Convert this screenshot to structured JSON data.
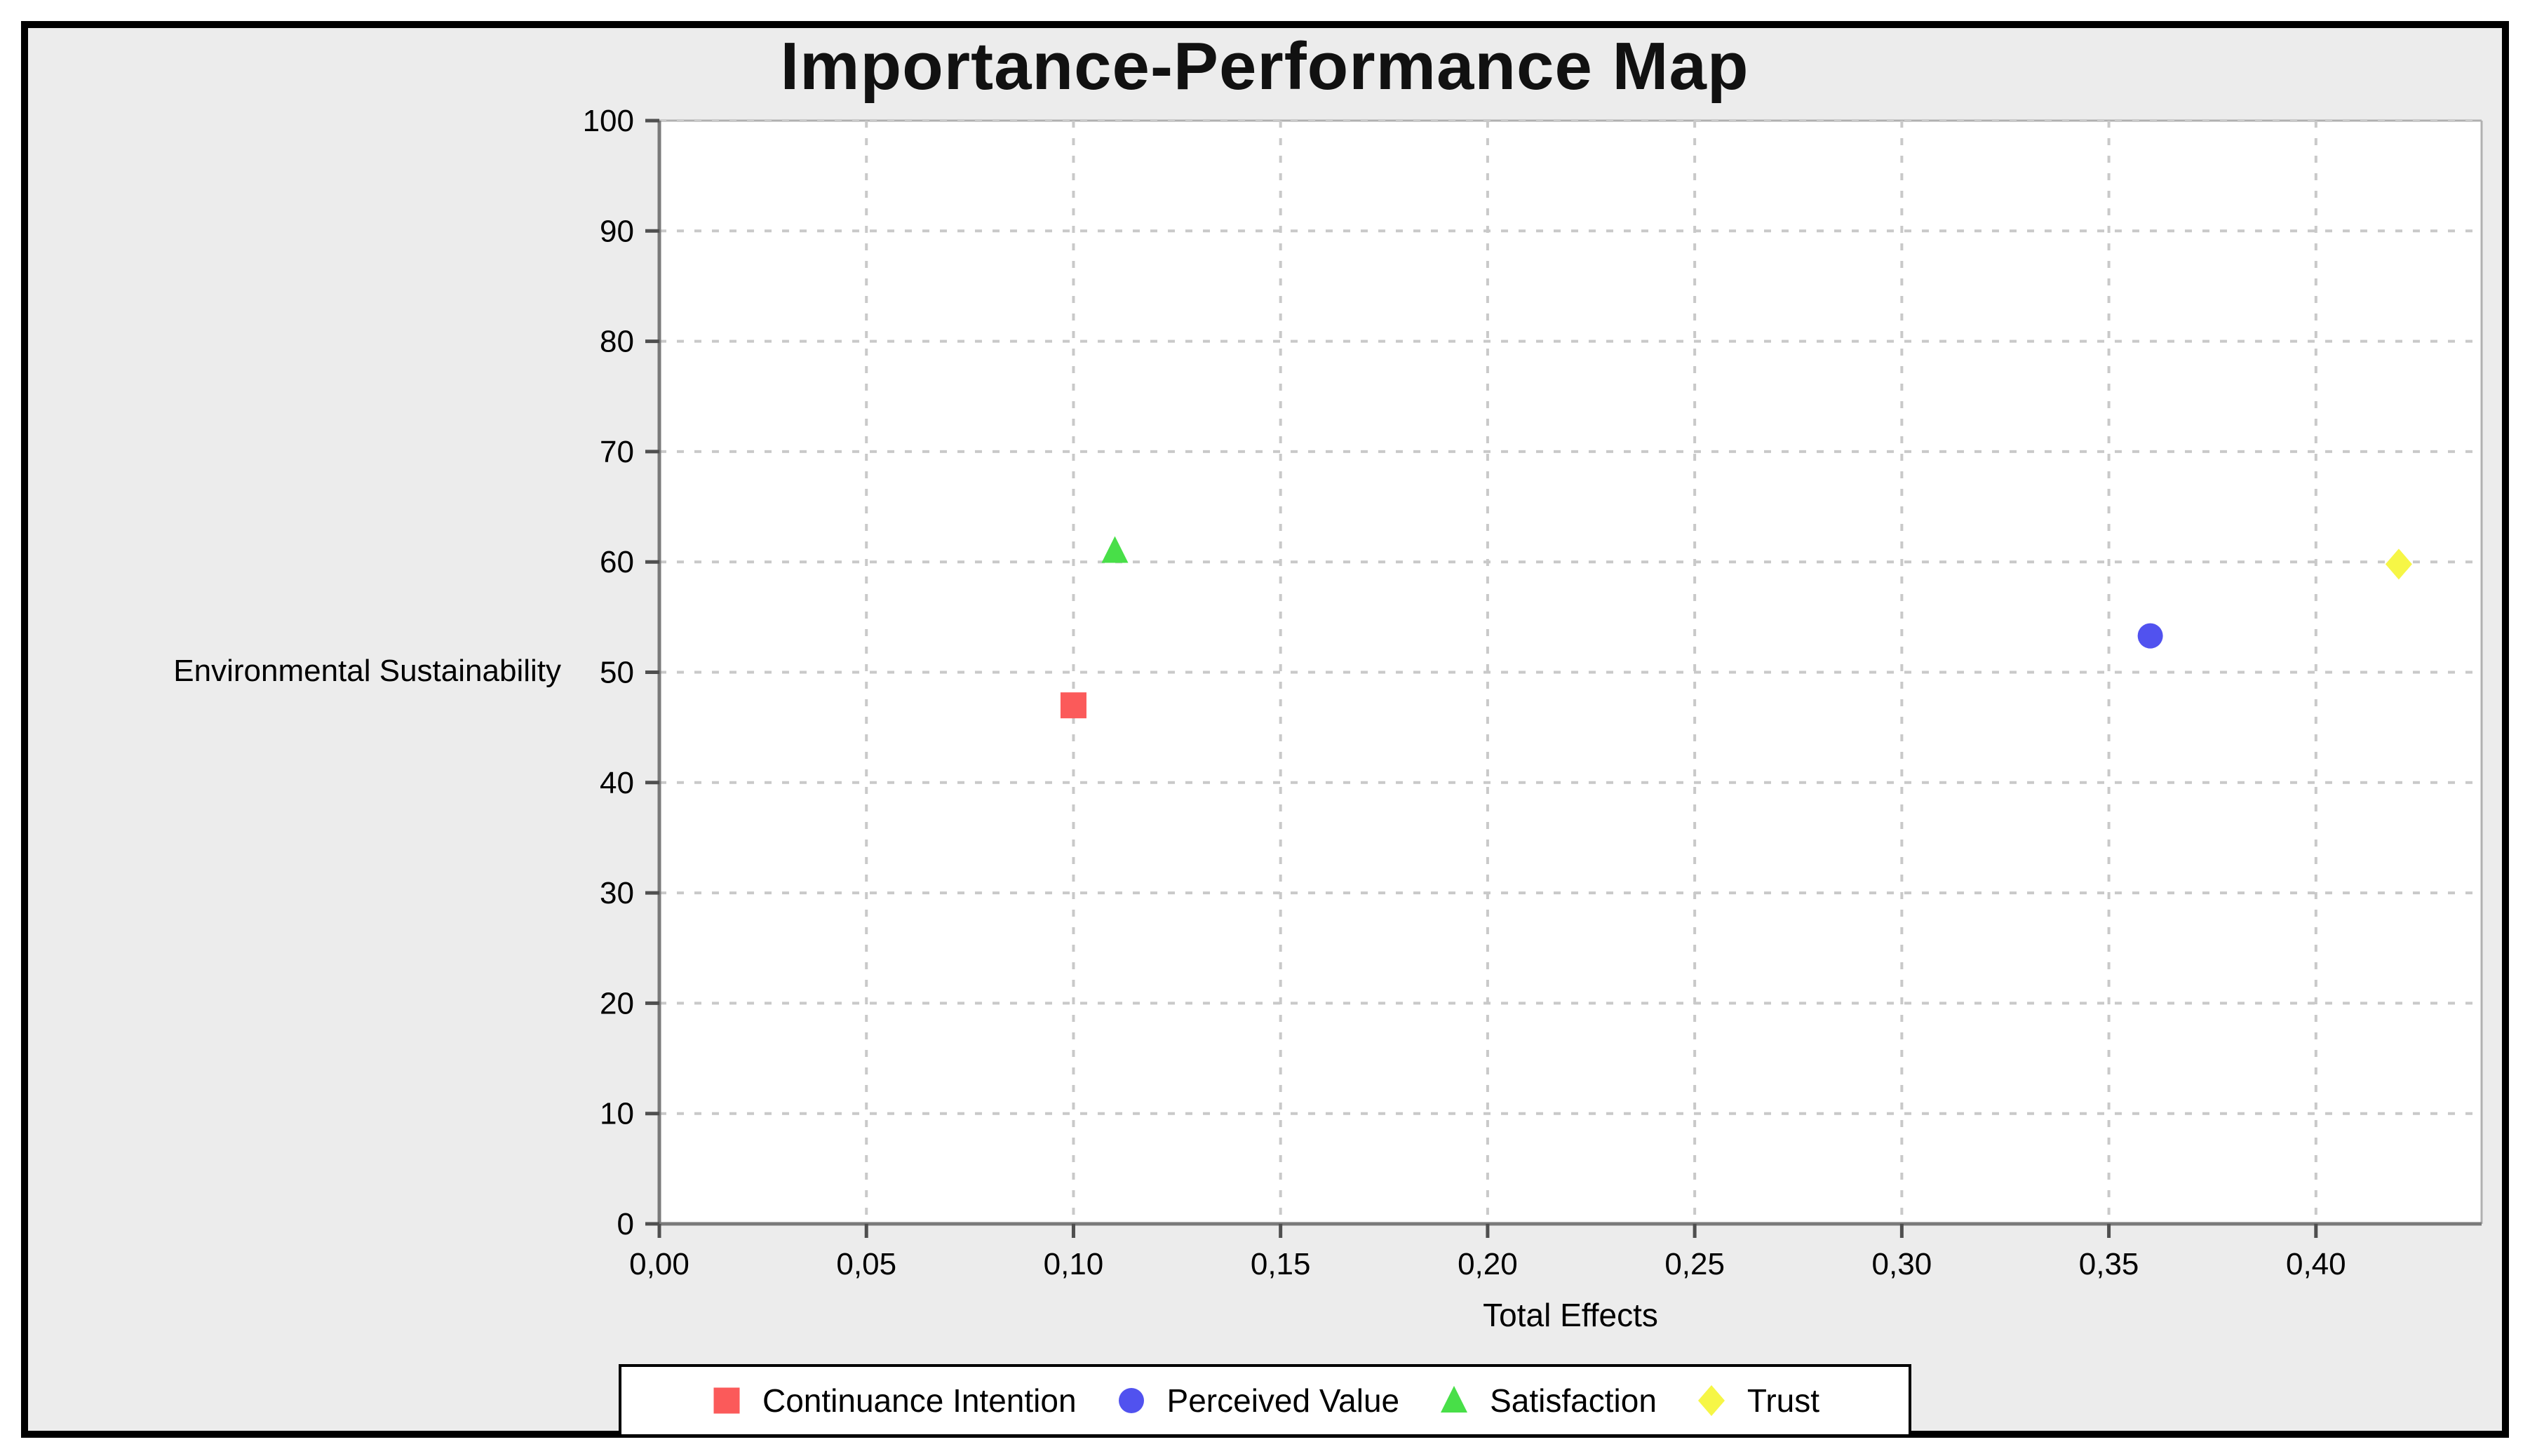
{
  "window": {
    "background": "#ffffff",
    "panel_background": "#ececec",
    "frame_border_color": "#000000"
  },
  "chart_data": {
    "type": "scatter",
    "title": "Importance-Performance Map",
    "xlabel": "Total Effects",
    "ylabel": "Environmental Sustainability",
    "xlim": [
      0,
      0.44
    ],
    "ylim": [
      0,
      100
    ],
    "x_ticks": [
      0.0,
      0.05,
      0.1,
      0.15,
      0.2,
      0.25,
      0.3,
      0.35,
      0.4
    ],
    "x_tick_labels": [
      "0,00",
      "0,05",
      "0,10",
      "0,15",
      "0,20",
      "0,25",
      "0,30",
      "0,35",
      "0,40"
    ],
    "y_ticks": [
      0,
      10,
      20,
      30,
      40,
      50,
      60,
      70,
      80,
      90,
      100
    ],
    "y_tick_labels": [
      "0",
      "10",
      "20",
      "30",
      "40",
      "50",
      "60",
      "70",
      "80",
      "90",
      "100"
    ],
    "grid": "dashed",
    "legend_position": "bottom",
    "series": [
      {
        "name": "Continuance Intention",
        "marker": "square",
        "color": "#fb5a5a",
        "points": [
          {
            "x": 0.1,
            "y": 47.0
          }
        ]
      },
      {
        "name": "Perceived Value",
        "marker": "circle",
        "color": "#5152ef",
        "points": [
          {
            "x": 0.36,
            "y": 53.3
          }
        ]
      },
      {
        "name": "Satisfaction",
        "marker": "triangle",
        "color": "#48df48",
        "points": [
          {
            "x": 0.11,
            "y": 61.0
          }
        ]
      },
      {
        "name": "Trust",
        "marker": "diamond",
        "color": "#f6f646",
        "points": [
          {
            "x": 0.42,
            "y": 59.8
          }
        ]
      }
    ],
    "colors": {
      "plot_background": "#ffffff",
      "grid": "#c9c9c9",
      "axis": "#7a7a7a",
      "plot_frame": "#b0b0b0",
      "tick": "#4f4f4f",
      "text": "#000000"
    }
  }
}
